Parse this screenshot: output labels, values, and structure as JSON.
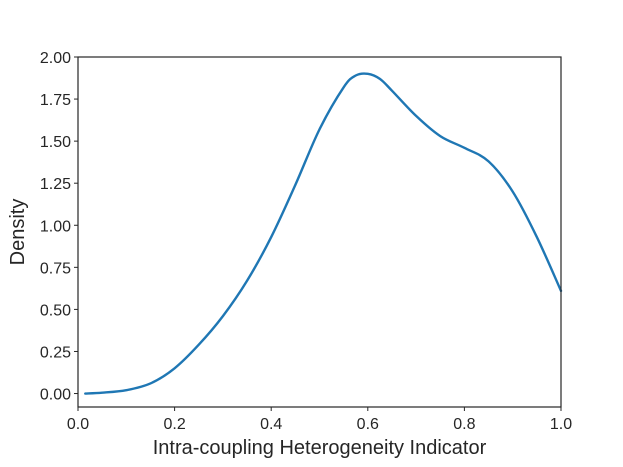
{
  "chart_data": {
    "type": "line",
    "title": "",
    "xlabel": "Intra-coupling Heterogeneity Indicator",
    "ylabel": "Density",
    "xlim": [
      0.0,
      1.0
    ],
    "ylim": [
      -0.08,
      2.0
    ],
    "grid": false,
    "legend": "none",
    "x_ticks": [
      0.0,
      0.2,
      0.4,
      0.6,
      0.8,
      1.0
    ],
    "x_tick_labels": [
      "0.0",
      "0.2",
      "0.4",
      "0.6",
      "0.8",
      "1.0"
    ],
    "y_ticks": [
      0.0,
      0.25,
      0.5,
      0.75,
      1.0,
      1.25,
      1.5,
      1.75,
      2.0
    ],
    "y_tick_labels": [
      "0.00",
      "0.25",
      "0.50",
      "0.75",
      "1.00",
      "1.25",
      "1.50",
      "1.75",
      "2.00"
    ],
    "series": [
      {
        "color": "#1f77b4",
        "x": [
          0.015,
          0.05,
          0.1,
          0.15,
          0.2,
          0.25,
          0.3,
          0.35,
          0.4,
          0.45,
          0.5,
          0.55,
          0.575,
          0.6,
          0.625,
          0.65,
          0.7,
          0.75,
          0.8,
          0.85,
          0.9,
          0.95,
          1.0
        ],
        "y": [
          0.0,
          0.005,
          0.02,
          0.06,
          0.15,
          0.29,
          0.46,
          0.67,
          0.93,
          1.24,
          1.57,
          1.82,
          1.89,
          1.9,
          1.87,
          1.8,
          1.65,
          1.53,
          1.46,
          1.38,
          1.2,
          0.93,
          0.61
        ]
      }
    ]
  }
}
